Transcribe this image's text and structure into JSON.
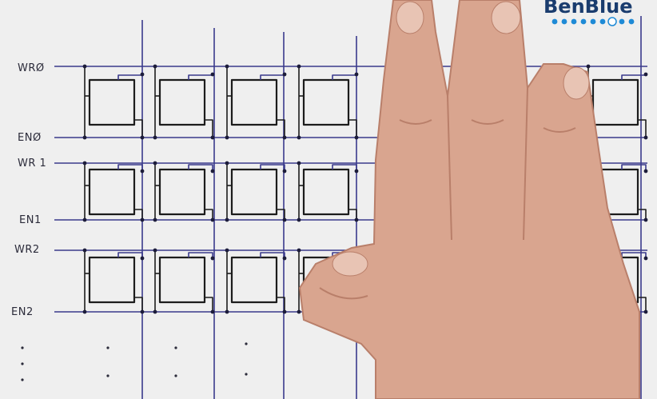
{
  "diagram": {
    "row_labels": [
      "WRØ",
      "ENØ",
      "WR 1",
      "EN1",
      "WR2",
      "EN2"
    ]
  },
  "logo": {
    "text": "BenBlue"
  },
  "colors": {
    "paper": "#efefef",
    "wire": "#3a3a8c",
    "cell": "#1c1c1c",
    "label": "#2b2b3a",
    "skin": "#d9a58f",
    "skin_shadow": "#b97f6a",
    "logo_dot": "#1e8ad6"
  }
}
